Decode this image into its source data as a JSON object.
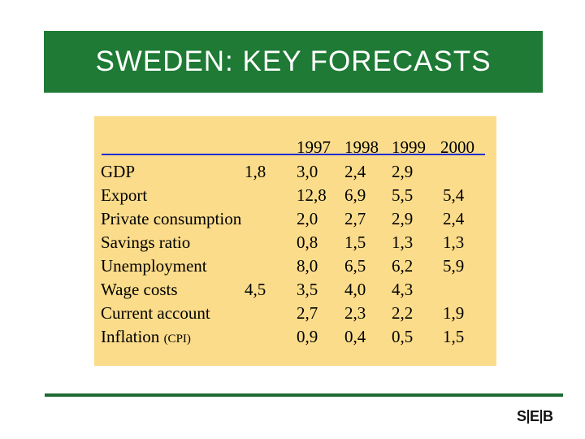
{
  "title": "SWEDEN: KEY FORECASTS",
  "colors": {
    "title_bar": "#1e7a34",
    "panel": "#fbdc8a",
    "header_rule": "#1f2fd0",
    "bottom_rule": "#1e6b33"
  },
  "table": {
    "years": [
      "1997",
      "1998",
      "1999",
      "2000"
    ],
    "rows": [
      {
        "label": "GDP",
        "label_small": "",
        "extra": "1,8",
        "v1997": "3,0",
        "v1998": "2,4",
        "v1999": "2,9",
        "v2000": ""
      },
      {
        "label": "Export",
        "label_small": "",
        "extra": "",
        "v1997": "12,8",
        "v1998": "6,9",
        "v1999": "5,5",
        "v2000": "5,4"
      },
      {
        "label": "Private consumption",
        "label_small": "",
        "extra": "",
        "v1997": "2,0",
        "v1998": "2,7",
        "v1999": "2,9",
        "v2000": "2,4"
      },
      {
        "label": "Savings ratio",
        "label_small": "",
        "extra": "",
        "v1997": "0,8",
        "v1998": "1,5",
        "v1999": "1,3",
        "v2000": "1,3"
      },
      {
        "label": "Unemployment",
        "label_small": "",
        "extra": "",
        "v1997": "8,0",
        "v1998": "6,5",
        "v1999": "6,2",
        "v2000": "5,9"
      },
      {
        "label": "Wage costs",
        "label_small": "",
        "extra": "4,5",
        "v1997": "3,5",
        "v1998": "4,0",
        "v1999": "4,3",
        "v2000": ""
      },
      {
        "label": "Current account",
        "label_small": "",
        "extra": "",
        "v1997": "2,7",
        "v1998": "2,3",
        "v1999": "2,2",
        "v2000": "1,9"
      },
      {
        "label": "Inflation",
        "label_small": "(CPI)",
        "extra": "",
        "v1997": "0,9",
        "v1998": "0,4",
        "v1999": "0,5",
        "v2000": "1,5"
      }
    ]
  },
  "logo": {
    "left": "S",
    "mid": "E",
    "right": "B"
  }
}
